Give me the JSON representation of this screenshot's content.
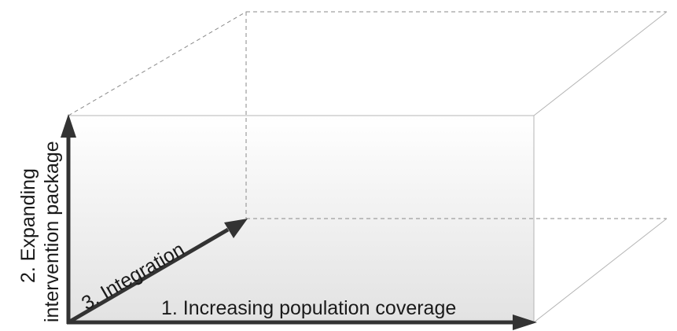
{
  "diagram": {
    "axes": {
      "x": {
        "label": "1. Increasing population coverage"
      },
      "y": {
        "label_line1": "2. Expanding",
        "label_line2": "intervention package"
      },
      "z": {
        "label": "3. Integration"
      }
    },
    "colors": {
      "arrow": "#333333",
      "edge_solid": "#b4b4b4",
      "edge_dashed": "#8a8a8a",
      "face_gradient_top": "#ffffff",
      "face_gradient_bottom": "#e2e2e2"
    }
  }
}
